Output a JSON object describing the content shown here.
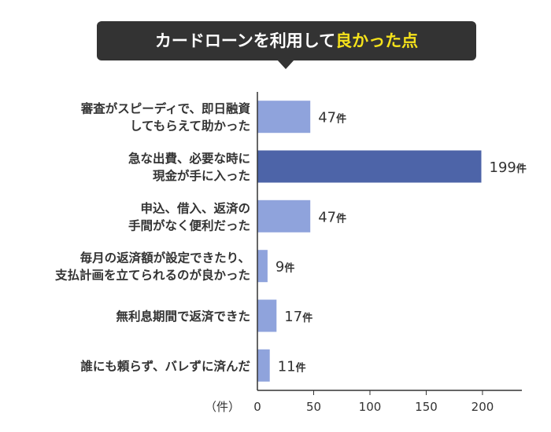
{
  "title": {
    "main": "カードローンを利用して",
    "highlight": "良かった点"
  },
  "colors": {
    "bar": "#8fa3dc",
    "bar_highlight": "#4d64a8",
    "title_bg": "#333333",
    "title_highlight": "#f5e21b",
    "axis": "#333333"
  },
  "chart_data": {
    "type": "bar",
    "orientation": "horizontal",
    "categories": [
      [
        "審査がスピーディで、即日融資",
        "してもらえて助かった"
      ],
      [
        "急な出費、必要な時に",
        "現金が手に入った"
      ],
      [
        "申込、借入、返済の",
        "手間がなく便利だった"
      ],
      [
        "毎月の返済額が設定できたり、",
        "支払計画を立てられるのが良かった"
      ],
      [
        "無利息期間で返済できた"
      ],
      [
        "誰にも頼らず、バレずに済んだ"
      ]
    ],
    "values": [
      47,
      199,
      47,
      9,
      17,
      11
    ],
    "highlight_index": 1,
    "value_unit": "件",
    "xlim": [
      0,
      235
    ],
    "xticks": [
      0,
      50,
      100,
      150,
      200
    ],
    "xlabel": "（件）"
  }
}
